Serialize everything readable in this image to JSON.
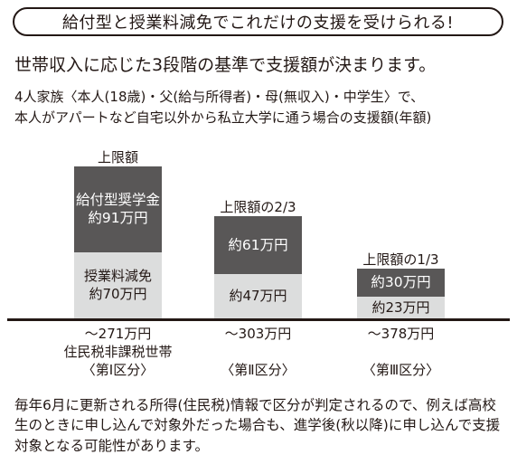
{
  "header": {
    "title": "給付型と授業料減免でこれだけの支援を受けられる!"
  },
  "lead": "世帯収入に応じた3段階の基準で支援額が決まります。",
  "condition": {
    "line1": "4人家族〈本人(18歳)・父(給与所得者)・母(無収入)・中学生〉で、",
    "line2": "本人がアパートなど自宅以外から私立大学に通う場合の支援額(年額)"
  },
  "chart_data": {
    "type": "bar",
    "stacked": true,
    "unit": "万円",
    "categories": [
      {
        "income": "〜271万円",
        "desc": "住民税非課税世帯",
        "group": "〈第Ⅰ区分〉",
        "cap_label": "上限額"
      },
      {
        "income": "〜303万円",
        "desc": "",
        "group": "〈第Ⅱ区分〉",
        "cap_label": "上限額の2/3"
      },
      {
        "income": "〜378万円",
        "desc": "",
        "group": "〈第Ⅲ区分〉",
        "cap_label": "上限額の1/3"
      }
    ],
    "series": [
      {
        "name": "授業料減免",
        "values": [
          70,
          47,
          23
        ],
        "labels": [
          "授業料減免\n約70万円",
          "約47万円",
          "約23万円"
        ]
      },
      {
        "name": "給付型奨学金",
        "values": [
          91,
          61,
          30
        ],
        "labels": [
          "給付型奨学金\n約91万円",
          "約61万円",
          "約30万円"
        ]
      }
    ],
    "colors": {
      "scholarship": "#595757",
      "tuition": "#dcdddd"
    }
  },
  "note": "毎年6月に更新される所得(住民税)情報で区分が判定されるので、例えば高校生のときに申し込んで対象外だった場合も、進学後(秋以降)に申し込んで支援対象となる可能性があります。"
}
